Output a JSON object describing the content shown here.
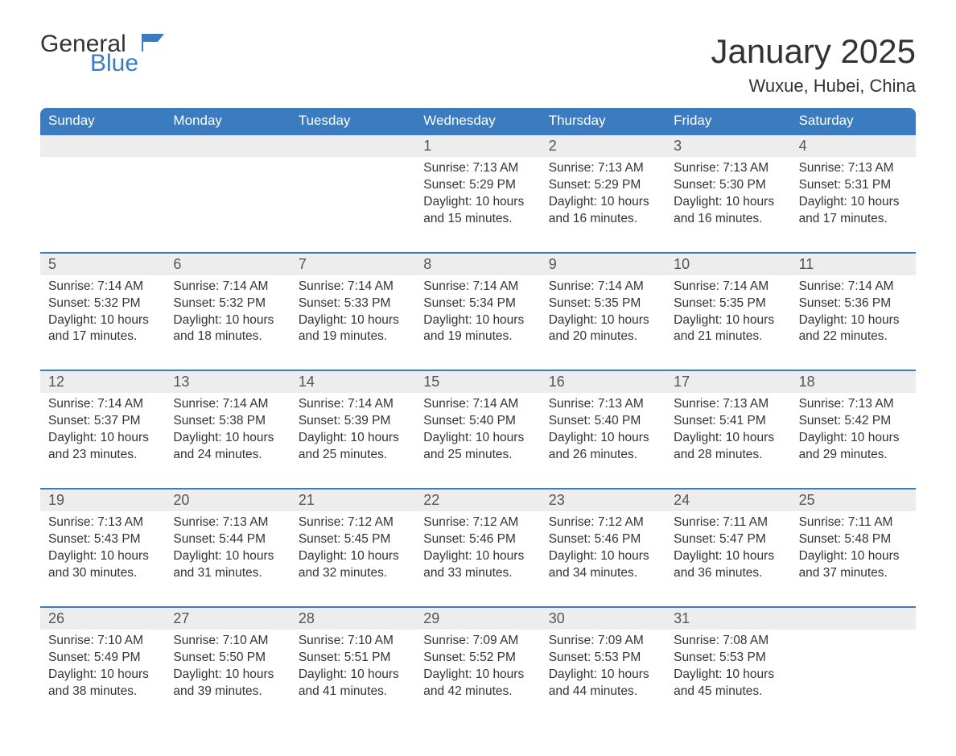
{
  "logo": {
    "word1": "General",
    "word2": "Blue",
    "flag_color": "#3b7bbf"
  },
  "title": "January 2025",
  "location": "Wuxue, Hubei, China",
  "colors": {
    "header_bg": "#3b7bbf",
    "header_text": "#ffffff",
    "daynum_bg": "#ededed",
    "border": "#3b7bbf",
    "body_text": "#333333"
  },
  "weekdays": [
    "Sunday",
    "Monday",
    "Tuesday",
    "Wednesday",
    "Thursday",
    "Friday",
    "Saturday"
  ],
  "weeks": [
    [
      null,
      null,
      null,
      {
        "n": "1",
        "sunrise": "7:13 AM",
        "sunset": "5:29 PM",
        "daylight": "10 hours and 15 minutes."
      },
      {
        "n": "2",
        "sunrise": "7:13 AM",
        "sunset": "5:29 PM",
        "daylight": "10 hours and 16 minutes."
      },
      {
        "n": "3",
        "sunrise": "7:13 AM",
        "sunset": "5:30 PM",
        "daylight": "10 hours and 16 minutes."
      },
      {
        "n": "4",
        "sunrise": "7:13 AM",
        "sunset": "5:31 PM",
        "daylight": "10 hours and 17 minutes."
      }
    ],
    [
      {
        "n": "5",
        "sunrise": "7:14 AM",
        "sunset": "5:32 PM",
        "daylight": "10 hours and 17 minutes."
      },
      {
        "n": "6",
        "sunrise": "7:14 AM",
        "sunset": "5:32 PM",
        "daylight": "10 hours and 18 minutes."
      },
      {
        "n": "7",
        "sunrise": "7:14 AM",
        "sunset": "5:33 PM",
        "daylight": "10 hours and 19 minutes."
      },
      {
        "n": "8",
        "sunrise": "7:14 AM",
        "sunset": "5:34 PM",
        "daylight": "10 hours and 19 minutes."
      },
      {
        "n": "9",
        "sunrise": "7:14 AM",
        "sunset": "5:35 PM",
        "daylight": "10 hours and 20 minutes."
      },
      {
        "n": "10",
        "sunrise": "7:14 AM",
        "sunset": "5:35 PM",
        "daylight": "10 hours and 21 minutes."
      },
      {
        "n": "11",
        "sunrise": "7:14 AM",
        "sunset": "5:36 PM",
        "daylight": "10 hours and 22 minutes."
      }
    ],
    [
      {
        "n": "12",
        "sunrise": "7:14 AM",
        "sunset": "5:37 PM",
        "daylight": "10 hours and 23 minutes."
      },
      {
        "n": "13",
        "sunrise": "7:14 AM",
        "sunset": "5:38 PM",
        "daylight": "10 hours and 24 minutes."
      },
      {
        "n": "14",
        "sunrise": "7:14 AM",
        "sunset": "5:39 PM",
        "daylight": "10 hours and 25 minutes."
      },
      {
        "n": "15",
        "sunrise": "7:14 AM",
        "sunset": "5:40 PM",
        "daylight": "10 hours and 25 minutes."
      },
      {
        "n": "16",
        "sunrise": "7:13 AM",
        "sunset": "5:40 PM",
        "daylight": "10 hours and 26 minutes."
      },
      {
        "n": "17",
        "sunrise": "7:13 AM",
        "sunset": "5:41 PM",
        "daylight": "10 hours and 28 minutes."
      },
      {
        "n": "18",
        "sunrise": "7:13 AM",
        "sunset": "5:42 PM",
        "daylight": "10 hours and 29 minutes."
      }
    ],
    [
      {
        "n": "19",
        "sunrise": "7:13 AM",
        "sunset": "5:43 PM",
        "daylight": "10 hours and 30 minutes."
      },
      {
        "n": "20",
        "sunrise": "7:13 AM",
        "sunset": "5:44 PM",
        "daylight": "10 hours and 31 minutes."
      },
      {
        "n": "21",
        "sunrise": "7:12 AM",
        "sunset": "5:45 PM",
        "daylight": "10 hours and 32 minutes."
      },
      {
        "n": "22",
        "sunrise": "7:12 AM",
        "sunset": "5:46 PM",
        "daylight": "10 hours and 33 minutes."
      },
      {
        "n": "23",
        "sunrise": "7:12 AM",
        "sunset": "5:46 PM",
        "daylight": "10 hours and 34 minutes."
      },
      {
        "n": "24",
        "sunrise": "7:11 AM",
        "sunset": "5:47 PM",
        "daylight": "10 hours and 36 minutes."
      },
      {
        "n": "25",
        "sunrise": "7:11 AM",
        "sunset": "5:48 PM",
        "daylight": "10 hours and 37 minutes."
      }
    ],
    [
      {
        "n": "26",
        "sunrise": "7:10 AM",
        "sunset": "5:49 PM",
        "daylight": "10 hours and 38 minutes."
      },
      {
        "n": "27",
        "sunrise": "7:10 AM",
        "sunset": "5:50 PM",
        "daylight": "10 hours and 39 minutes."
      },
      {
        "n": "28",
        "sunrise": "7:10 AM",
        "sunset": "5:51 PM",
        "daylight": "10 hours and 41 minutes."
      },
      {
        "n": "29",
        "sunrise": "7:09 AM",
        "sunset": "5:52 PM",
        "daylight": "10 hours and 42 minutes."
      },
      {
        "n": "30",
        "sunrise": "7:09 AM",
        "sunset": "5:53 PM",
        "daylight": "10 hours and 44 minutes."
      },
      {
        "n": "31",
        "sunrise": "7:08 AM",
        "sunset": "5:53 PM",
        "daylight": "10 hours and 45 minutes."
      },
      null
    ]
  ],
  "labels": {
    "sunrise": "Sunrise: ",
    "sunset": "Sunset: ",
    "daylight": "Daylight: "
  }
}
